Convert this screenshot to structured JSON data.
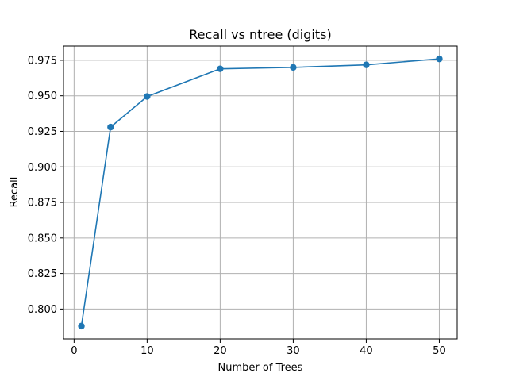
{
  "chart_data": {
    "type": "line",
    "title": "Recall vs ntree (digits)",
    "xlabel": "Number of Trees",
    "ylabel": "Recall",
    "xlim": [
      -1.45,
      52.45
    ],
    "ylim": [
      0.779,
      0.985
    ],
    "xticks": [
      0,
      10,
      20,
      30,
      40,
      50
    ],
    "xtick_labels": [
      "0",
      "10",
      "20",
      "30",
      "40",
      "50"
    ],
    "yticks": [
      0.8,
      0.825,
      0.85,
      0.875,
      0.9,
      0.925,
      0.95,
      0.975
    ],
    "ytick_labels": [
      "0.800",
      "0.825",
      "0.850",
      "0.875",
      "0.900",
      "0.925",
      "0.950",
      "0.975"
    ],
    "grid": true,
    "series": [
      {
        "color": "#1f77b4",
        "marker": "circle",
        "x": [
          1,
          5,
          10,
          20,
          30,
          40,
          50
        ],
        "y": [
          0.788,
          0.928,
          0.9495,
          0.969,
          0.97,
          0.9718,
          0.976
        ]
      }
    ]
  }
}
